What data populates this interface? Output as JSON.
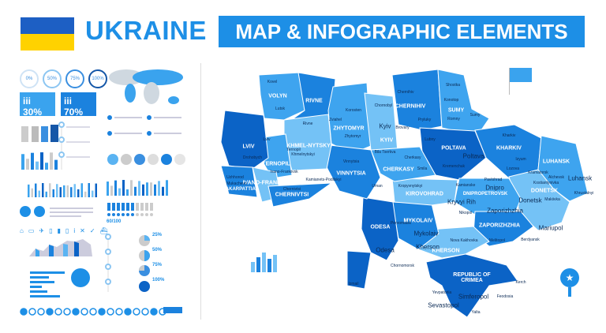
{
  "header": {
    "flag_colors": {
      "top": "#1d5fc4",
      "bottom": "#ffd200"
    },
    "title": "UKRAINE",
    "banner": "MAP & INFOGRAPHIC ELEMENTS"
  },
  "infographic": {
    "progress_rings": [
      "0%",
      "50%",
      "75%",
      "100%"
    ],
    "population_boxes": [
      "30%",
      "70%"
    ],
    "people_ratio": "60/100",
    "pie_labels": [
      "25%",
      "50%",
      "75%",
      "100%"
    ],
    "icons": [
      "home-icon",
      "car-icon",
      "plane-icon",
      "bus-icon",
      "train-icon",
      "tram-icon",
      "info-icon",
      "tools-icon",
      "check-icon",
      "ship-icon"
    ]
  },
  "map": {
    "colors": {
      "dark": "#0b63c6",
      "medium": "#1b82de",
      "light": "#3ea4ef",
      "pale": "#74c2f6"
    },
    "regions": [
      "VOLYN",
      "RIVNE",
      "ZHYTOMYR",
      "KYIV",
      "CHERNIHIV",
      "SUMY",
      "POLTAVA",
      "KHARKIV",
      "LUHANSK",
      "DONETSK",
      "DNIPROPETROVSK",
      "ZAPORIZHZHIA",
      "KHERSON",
      "MYKOLAIV",
      "ODESA",
      "KIROVOHRAD",
      "CHERKASY",
      "VINNYTSIA",
      "KHMEL-NYTSKYI",
      "TERNOPIL",
      "LVIV",
      "IVANO-FRANKIVSK",
      "ZAKARPATTIA",
      "CHERNIVTSI",
      "REPUBLIC OF CRIMEA"
    ],
    "cities": [
      "Kovel",
      "Lutsk",
      "Rivne",
      "Korosten",
      "Zviahel",
      "Zhytomyr",
      "Chornobyl",
      "Kyiv",
      "Brovary",
      "Bila Tserkva",
      "Chernihiv",
      "Pryluky",
      "Shostka",
      "Konotop",
      "Sumy",
      "Romny",
      "Lubny",
      "Poltava",
      "Kremenchuk",
      "Kharkiv",
      "Izyum",
      "Lozova",
      "Luhansk",
      "Alchevsk",
      "Khrustalnyi",
      "Kramatorsk",
      "Kostiantynivka",
      "Donetsk",
      "Makiivka",
      "Mariupol",
      "Berdyansk",
      "Pavlohrad",
      "Dnipro",
      "Kamianske",
      "Kryvyi Rih",
      "Nikopol",
      "Zaporizhzhia",
      "Melitopol",
      "Nova Kakhovka",
      "Kherson",
      "Mykolaiv",
      "Pervomaisk",
      "Odesa",
      "Chornomorsk",
      "Izmail",
      "Cherkasy",
      "Smila",
      "Kropyvnytskyi",
      "Uman",
      "Vinnytsia",
      "Khmelnytskyi",
      "Kamianets-Podilskyi",
      "Ternopil",
      "Lviv",
      "Drohobych",
      "Ivano-Frankivsk",
      "Uzhhorod",
      "Mukachevo",
      "Chernivtsi",
      "Yevpatoriia",
      "Simferopol",
      "Sevastopol",
      "Yalta",
      "Feodosia",
      "Kerch"
    ]
  }
}
